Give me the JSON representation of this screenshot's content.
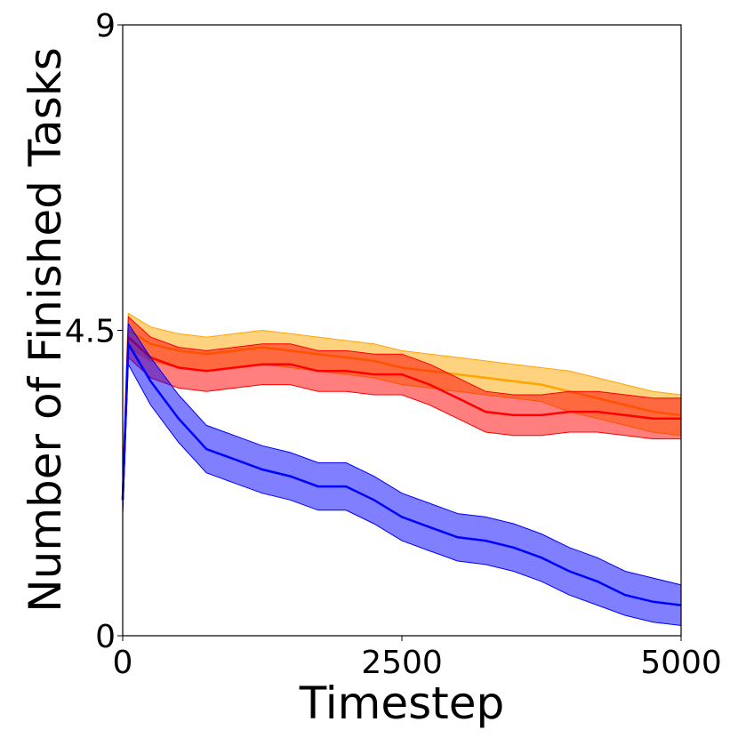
{
  "chart_data": {
    "type": "line",
    "x_label": "Timestep",
    "y_label": "Number of Finished Tasks",
    "x": [
      0,
      50,
      250,
      500,
      750,
      1000,
      1250,
      1500,
      1750,
      2000,
      2250,
      2500,
      2750,
      3000,
      3250,
      3500,
      3750,
      4000,
      4250,
      4500,
      4750,
      5000
    ],
    "series": [
      {
        "color": "#ffa500",
        "values": [
          2,
          4.5,
          4.3,
          4.2,
          4.15,
          4.2,
          4.25,
          4.2,
          4.15,
          4.1,
          4.05,
          3.95,
          3.9,
          3.85,
          3.8,
          3.75,
          3.7,
          3.6,
          3.5,
          3.4,
          3.3,
          3.25
        ],
        "lower": [
          1.8,
          4.25,
          4.05,
          3.95,
          3.9,
          3.95,
          4.0,
          3.95,
          3.9,
          3.85,
          3.8,
          3.7,
          3.65,
          3.6,
          3.55,
          3.5,
          3.45,
          3.3,
          3.2,
          3.1,
          3.0,
          2.95
        ],
        "upper": [
          2.2,
          4.75,
          4.55,
          4.45,
          4.4,
          4.45,
          4.5,
          4.45,
          4.4,
          4.35,
          4.3,
          4.2,
          4.15,
          4.1,
          4.05,
          4.0,
          3.95,
          3.9,
          3.8,
          3.7,
          3.6,
          3.55
        ]
      },
      {
        "color": "#ff0000",
        "values": [
          2,
          4.4,
          4.1,
          3.95,
          3.9,
          3.95,
          4.0,
          4.0,
          3.9,
          3.9,
          3.85,
          3.85,
          3.7,
          3.5,
          3.3,
          3.25,
          3.25,
          3.3,
          3.3,
          3.25,
          3.2,
          3.2
        ],
        "lower": [
          1.8,
          4.1,
          3.8,
          3.65,
          3.6,
          3.65,
          3.7,
          3.7,
          3.6,
          3.6,
          3.55,
          3.55,
          3.4,
          3.2,
          3.0,
          2.95,
          2.95,
          3.0,
          3.0,
          2.95,
          2.9,
          2.9
        ],
        "upper": [
          2.2,
          4.7,
          4.4,
          4.25,
          4.2,
          4.25,
          4.3,
          4.3,
          4.2,
          4.2,
          4.15,
          4.15,
          4.0,
          3.8,
          3.6,
          3.55,
          3.55,
          3.6,
          3.6,
          3.55,
          3.5,
          3.5
        ]
      },
      {
        "color": "#0000ff",
        "values": [
          2,
          4.3,
          3.75,
          3.2,
          2.75,
          2.6,
          2.45,
          2.35,
          2.2,
          2.2,
          2.0,
          1.75,
          1.6,
          1.45,
          1.4,
          1.3,
          1.15,
          0.95,
          0.8,
          0.6,
          0.5,
          0.45
        ],
        "lower": [
          1.8,
          4.0,
          3.4,
          2.85,
          2.4,
          2.25,
          2.1,
          2.0,
          1.85,
          1.85,
          1.65,
          1.4,
          1.25,
          1.1,
          1.05,
          0.95,
          0.8,
          0.6,
          0.45,
          0.3,
          0.2,
          0.15
        ],
        "upper": [
          2.2,
          4.6,
          4.1,
          3.55,
          3.1,
          2.95,
          2.8,
          2.7,
          2.55,
          2.55,
          2.35,
          2.1,
          1.95,
          1.8,
          1.75,
          1.65,
          1.5,
          1.3,
          1.15,
          0.95,
          0.85,
          0.75
        ]
      }
    ],
    "xlim": [
      0,
      5000
    ],
    "xticks": [
      0,
      2500,
      5000
    ],
    "ylim": [
      0,
      9
    ],
    "yticks": [
      0,
      4.5,
      9
    ],
    "grid": false
  }
}
